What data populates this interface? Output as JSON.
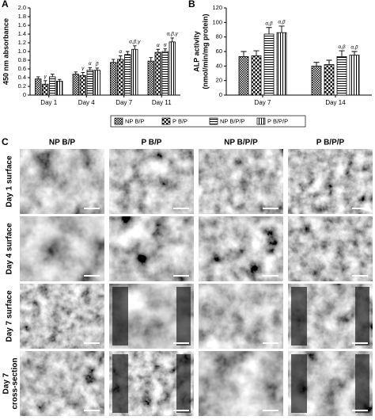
{
  "chart_data": [
    {
      "type": "bar",
      "panel": "A",
      "ylabel": "450 nm absorbance",
      "categories": [
        "Day 1",
        "Day 4",
        "Day 7",
        "Day 11"
      ],
      "series": [
        {
          "name": "NP B/P",
          "color": "#000000",
          "pattern": "checker-fine",
          "values": [
            0.37,
            0.48,
            0.75,
            0.78
          ],
          "errors": [
            0.05,
            0.05,
            0.07,
            0.08
          ]
        },
        {
          "name": "P B/P",
          "color": "#000000",
          "pattern": "checker",
          "values": [
            0.25,
            0.45,
            0.82,
            0.98
          ],
          "errors": [
            0.08,
            0.07,
            0.08,
            0.07
          ]
        },
        {
          "name": "NP B/P/P",
          "color": "#000000",
          "pattern": "hstripe",
          "values": [
            0.42,
            0.57,
            0.93,
            1.0
          ],
          "errors": [
            0.06,
            0.06,
            0.07,
            0.06
          ]
        },
        {
          "name": "P B/P/P",
          "color": "#000000",
          "pattern": "vstripe",
          "values": [
            0.32,
            0.57,
            1.05,
            1.22
          ],
          "errors": [
            0.04,
            0.05,
            0.08,
            0.09
          ]
        }
      ],
      "annotations": [
        {
          "text": "γ",
          "series": 1,
          "category": 0
        },
        {
          "text": "γ",
          "series": 1,
          "category": 1
        },
        {
          "text": "α",
          "series": 2,
          "category": 1
        },
        {
          "text": "β",
          "series": 3,
          "category": 1
        },
        {
          "text": "α",
          "series": 1,
          "category": 2
        },
        {
          "text": "α,β,γ",
          "series": 3,
          "category": 2
        },
        {
          "text": "α",
          "series": 1,
          "category": 3
        },
        {
          "text": "α",
          "series": 2,
          "category": 3
        },
        {
          "text": "α,β,γ",
          "series": 3,
          "category": 3
        }
      ],
      "ylim": [
        0,
        2
      ],
      "yticks": [
        0,
        0.2,
        0.4,
        0.6,
        0.8,
        {
          "value": 1,
          "label": "1.0"
        },
        1.2,
        1.4,
        1.6,
        1.8,
        {
          "value": 2,
          "label": "2.0"
        }
      ]
    },
    {
      "type": "bar",
      "panel": "B",
      "ylabel": [
        "ALP activity",
        "(nmol/min/mg protein)"
      ],
      "categories": [
        "Day 7",
        "Day 14"
      ],
      "series": [
        {
          "name": "NP B/P",
          "color": "#000000",
          "pattern": "checker-fine",
          "values": [
            53,
            40
          ],
          "errors": [
            7,
            5
          ]
        },
        {
          "name": "P B/P",
          "color": "#000000",
          "pattern": "checker",
          "values": [
            54,
            42
          ],
          "errors": [
            7,
            6
          ]
        },
        {
          "name": "NP B/P/P",
          "color": "#000000",
          "pattern": "hstripe",
          "values": [
            84,
            53
          ],
          "errors": [
            9,
            8
          ]
        },
        {
          "name": "P B/P/P",
          "color": "#000000",
          "pattern": "vstripe",
          "values": [
            86,
            55
          ],
          "errors": [
            9,
            5
          ]
        }
      ],
      "annotations": [
        {
          "text": "α,β",
          "series": 2,
          "category": 0
        },
        {
          "text": "α,β",
          "series": 3,
          "category": 0
        },
        {
          "text": "α,β",
          "series": 2,
          "category": 1
        },
        {
          "text": "α,β",
          "series": 3,
          "category": 1
        }
      ],
      "ylim": [
        0,
        120
      ],
      "yticks": [
        0,
        20,
        40,
        60,
        80,
        100,
        120
      ]
    }
  ],
  "panel_c": {
    "label": "C",
    "columns": [
      "NP B/P",
      "P B/P",
      "NP B/P/P",
      "P B/P/P"
    ],
    "rows": [
      [
        "Day 1 surface"
      ],
      [
        "Day 4 surface"
      ],
      [
        "Day 7 surface"
      ],
      [
        "Day 7",
        "cross-section"
      ]
    ]
  }
}
